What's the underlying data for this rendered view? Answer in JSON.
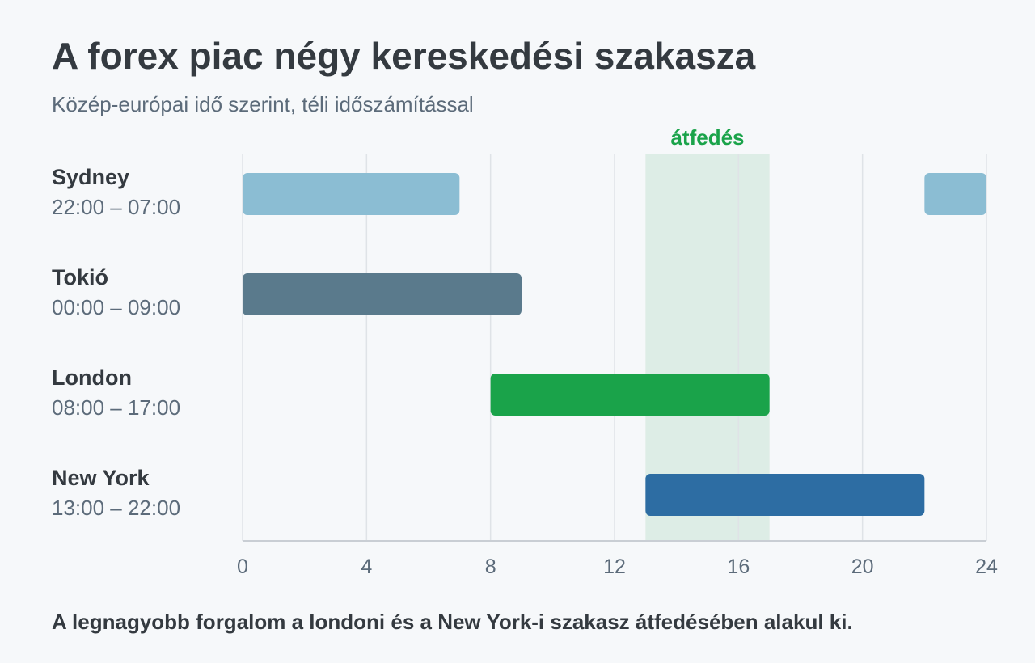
{
  "title": "A forex piac négy kereskedési szakasza",
  "subtitle": "Közép-európai idő szerint, téli időszámítással",
  "footnote": "A legnagyobb forgalom a londoni és a New York-i szakasz átfedésében alakul ki.",
  "chart_data": {
    "type": "bar",
    "orientation": "horizontal-range",
    "xlim": [
      0,
      24
    ],
    "xticks": [
      0,
      4,
      8,
      12,
      16,
      20,
      24
    ],
    "xtick_labels": [
      "0",
      "4",
      "8",
      "12",
      "16",
      "20",
      "24"
    ],
    "grid": true,
    "sessions": [
      {
        "name": "Sydney",
        "time_label": "22:00 – 07:00",
        "ranges": [
          [
            0,
            7
          ],
          [
            22,
            24
          ]
        ],
        "color": "#8bbdd3"
      },
      {
        "name": "Tokió",
        "time_label": "00:00 – 09:00",
        "ranges": [
          [
            0,
            9
          ]
        ],
        "color": "#5a7a8c"
      },
      {
        "name": "London",
        "time_label": "08:00 – 17:00",
        "ranges": [
          [
            8,
            17
          ]
        ],
        "color": "#1aa34a"
      },
      {
        "name": "New York",
        "time_label": "13:00 – 22:00",
        "ranges": [
          [
            13,
            22
          ]
        ],
        "color": "#2d6da3"
      }
    ],
    "highlight": {
      "label": "átfedés",
      "range": [
        13,
        17
      ],
      "color": "#ddede6",
      "label_color": "#1aa34a"
    }
  }
}
